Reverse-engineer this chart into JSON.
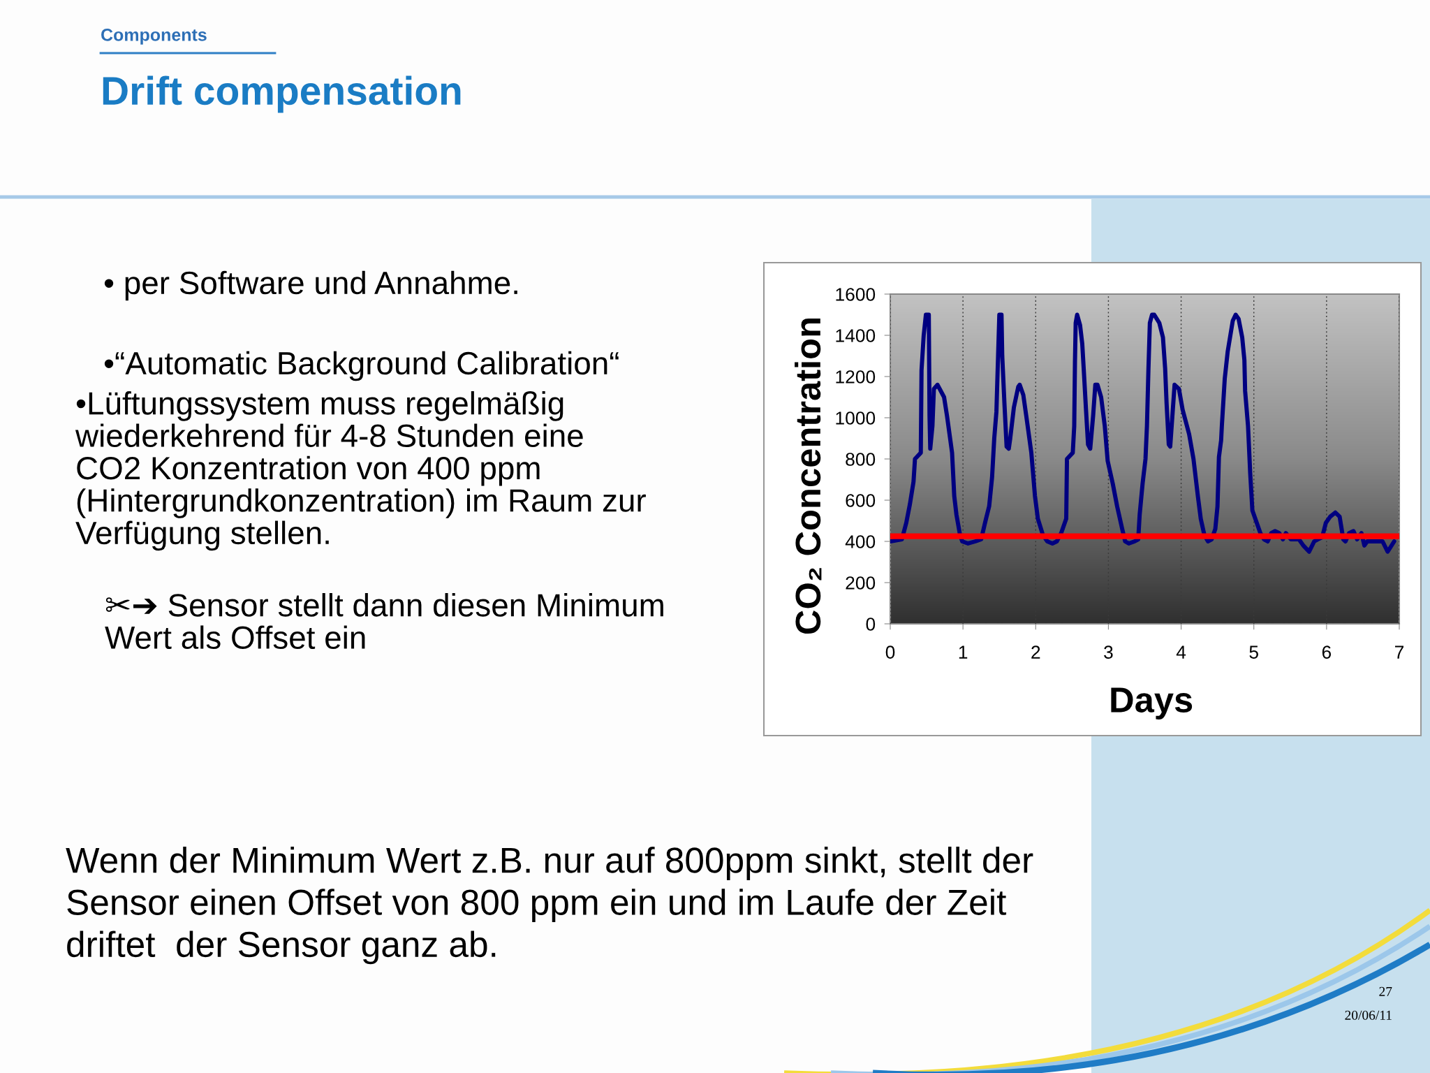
{
  "chart_data": {
    "type": "line",
    "title": "Drift compensation",
    "subtitle": "Components",
    "xlabel": "Days",
    "ylabel": "CO₂ Concentration",
    "annotations": [
      "• per Software und Annahme.",
      "•“Automatic Background Calibration“",
      "•Lüftungssystem muss regelmäßig\nwiederkehrend für 4-8 Stunden eine\nCO2 Konzentration von 400 ppm\n(Hintergrundkonzentration) im Raum zur\nVerfügung stellen.",
      "✂➔ Sensor stellt dann diesen Minimum\nWert als Offset ein",
      "Wenn der Minimum Wert z.B. nur auf 800ppm sinkt, stellt der\nSensor einen Offset von 800 ppm ein und im Laufe der Zeit\ndriftet  der Sensor ganz ab.",
      "27",
      "20/06/11"
    ],
    "x": [
      0,
      0.16,
      0.22,
      0.27,
      0.32,
      0.34,
      0.42,
      0.43,
      0.46,
      0.49,
      0.53,
      0.54,
      0.55,
      0.58,
      0.6,
      0.65,
      0.74,
      0.78,
      0.85,
      0.88,
      0.91,
      0.96,
      0.99,
      1.07,
      1.17,
      1.25,
      1.31,
      1.36,
      1.4,
      1.43,
      1.46,
      1.47,
      1.5,
      1.53,
      1.54,
      1.57,
      1.6,
      1.63,
      1.65,
      1.7,
      1.76,
      1.78,
      1.83,
      1.87,
      1.94,
      1.99,
      2.03,
      2.1,
      2.16,
      2.23,
      2.29,
      2.35,
      2.42,
      2.43,
      2.51,
      2.53,
      2.54,
      2.55,
      2.57,
      2.61,
      2.64,
      2.66,
      2.69,
      2.72,
      2.75,
      2.79,
      2.82,
      2.85,
      2.9,
      2.95,
      2.99,
      3.06,
      3.12,
      3.19,
      3.23,
      3.28,
      3.36,
      3.41,
      3.43,
      3.47,
      3.51,
      3.53,
      3.55,
      3.57,
      3.6,
      3.63,
      3.7,
      3.75,
      3.78,
      3.8,
      3.83,
      3.85,
      3.87,
      3.91,
      3.97,
      4.02,
      4.11,
      4.17,
      4.23,
      4.27,
      4.32,
      4.37,
      4.42,
      4.47,
      4.5,
      4.52,
      4.55,
      4.56,
      4.6,
      4.64,
      4.71,
      4.75,
      4.79,
      4.84,
      4.87,
      4.88,
      4.92,
      4.95,
      4.98,
      5.03,
      5.09,
      5.14,
      5.19,
      5.24,
      5.29,
      5.35,
      5.4,
      5.44,
      5.51,
      5.56,
      5.62,
      5.68,
      5.76,
      5.83,
      5.88,
      5.94,
      5.99,
      6.05,
      6.12,
      6.18,
      6.23,
      6.26,
      6.31,
      6.37,
      6.42,
      6.48,
      6.52,
      6.56,
      6.69,
      6.77,
      6.84,
      6.93
    ],
    "series": [
      {
        "color": "#000080",
        "values": [
          400,
          410,
          490,
          580,
          690,
          800,
          830,
          1230,
          1400,
          1500,
          1500,
          1010,
          850,
          960,
          1140,
          1160,
          1100,
          1010,
          830,
          620,
          530,
          430,
          400,
          390,
          400,
          410,
          500,
          570,
          710,
          900,
          1030,
          1150,
          1500,
          1500,
          1300,
          1070,
          860,
          850,
          900,
          1050,
          1150,
          1160,
          1110,
          1010,
          830,
          620,
          510,
          430,
          400,
          390,
          400,
          440,
          510,
          800,
          830,
          960,
          1270,
          1460,
          1500,
          1450,
          1360,
          1240,
          1050,
          870,
          850,
          1010,
          1160,
          1160,
          1100,
          960,
          790,
          680,
          570,
          460,
          400,
          390,
          400,
          410,
          530,
          680,
          800,
          960,
          1230,
          1460,
          1500,
          1500,
          1460,
          1390,
          1240,
          1070,
          870,
          860,
          960,
          1160,
          1140,
          1040,
          920,
          800,
          620,
          510,
          430,
          400,
          410,
          460,
          570,
          810,
          890,
          960,
          1190,
          1320,
          1470,
          1500,
          1480,
          1390,
          1280,
          1130,
          960,
          730,
          550,
          500,
          440,
          410,
          400,
          440,
          450,
          440,
          410,
          440,
          410,
          410,
          410,
          380,
          350,
          400,
          410,
          420,
          490,
          520,
          540,
          520,
          410,
          400,
          440,
          450,
          410,
          440,
          380,
          400,
          400,
          400,
          350,
          400
        ]
      }
    ],
    "ref_lines": [
      {
        "axis": "y",
        "value": 425,
        "color": "#ff0000"
      }
    ],
    "xlim": [
      0,
      7
    ],
    "ylim": [
      0,
      1600
    ],
    "xticks": [
      0,
      1,
      2,
      3,
      4,
      5,
      6,
      7
    ],
    "yticks": [
      0,
      200,
      400,
      600,
      800,
      1000,
      1200,
      1400,
      1600
    ],
    "grid": "x"
  }
}
